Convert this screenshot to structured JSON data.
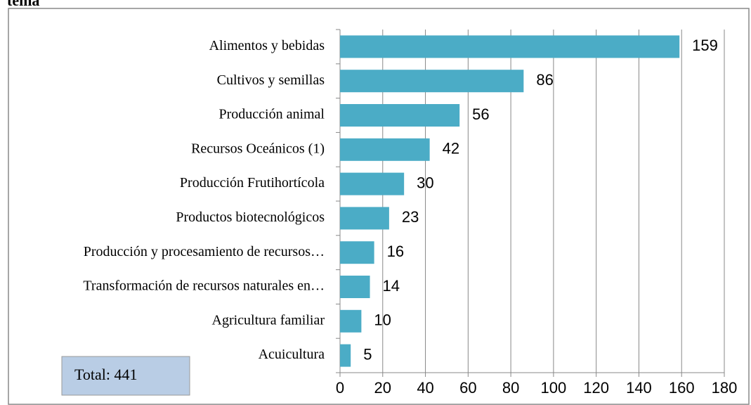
{
  "chart_data": {
    "type": "bar",
    "orientation": "horizontal",
    "title": "tema",
    "categories": [
      "Alimentos y bebidas",
      "Cultivos y semillas",
      "Producción animal",
      "Recursos Oceánicos (1)",
      "Producción Frutihortícola",
      "Productos biotecnológicos",
      "Producción y procesamiento de recursos…",
      "Transformación de recursos naturales en…",
      "Agricultura familiar",
      "Acuicultura"
    ],
    "values": [
      159,
      86,
      56,
      42,
      30,
      23,
      16,
      14,
      10,
      5
    ],
    "color": "#4bacc6",
    "xlim": [
      0,
      180
    ],
    "xticks": [
      0,
      20,
      40,
      60,
      80,
      100,
      120,
      140,
      160,
      180
    ],
    "grid": true,
    "annotation": "Total: 441"
  }
}
